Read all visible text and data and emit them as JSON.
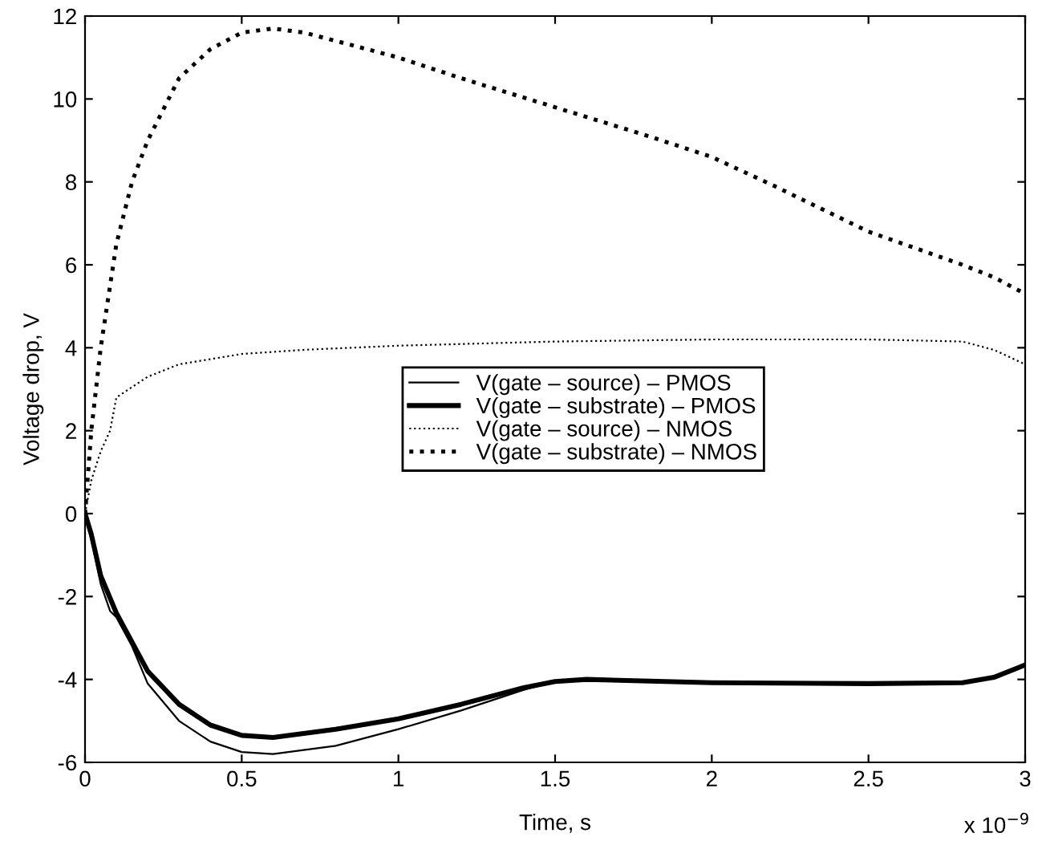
{
  "chart_data": {
    "type": "line",
    "xlabel": "Time, s",
    "ylabel": "Voltage drop, V",
    "xlim": [
      0,
      3
    ],
    "xticks": [
      0,
      0.5,
      1,
      1.5,
      2,
      2.5,
      3
    ],
    "ylim": [
      -6,
      12
    ],
    "yticks": [
      -6,
      -4,
      -2,
      0,
      2,
      4,
      6,
      8,
      10,
      12
    ],
    "annotations": [
      "x 10$^{−9}$"
    ],
    "grid": false,
    "legend": "center",
    "series": [
      {
        "name": "V(gate – source) – PMOS",
        "color": "#000000",
        "line_style": "solid",
        "x": [
          0,
          0.02,
          0.05,
          0.08,
          0.1,
          0.15,
          0.2,
          0.3,
          0.4,
          0.5,
          0.6,
          0.8,
          1.0,
          1.2,
          1.4,
          1.5,
          1.6,
          2.0,
          2.5,
          2.8,
          2.9,
          3.0
        ],
        "values": [
          0,
          -0.6,
          -1.7,
          -2.35,
          -2.5,
          -3.2,
          -4.1,
          -5.0,
          -5.5,
          -5.75,
          -5.8,
          -5.6,
          -5.2,
          -4.75,
          -4.25,
          -4.05,
          -4.0,
          -4.08,
          -4.1,
          -4.08,
          -3.95,
          -3.65
        ]
      },
      {
        "name": "V(gate – substrate) – PMOS",
        "color": "#000000",
        "line_style": "solid",
        "x": [
          0,
          0.02,
          0.05,
          0.1,
          0.2,
          0.3,
          0.4,
          0.5,
          0.6,
          0.8,
          1.0,
          1.2,
          1.4,
          1.5,
          1.6,
          2.0,
          2.5,
          2.8,
          2.9,
          3.0
        ],
        "values": [
          0,
          -0.5,
          -1.5,
          -2.4,
          -3.8,
          -4.6,
          -5.1,
          -5.35,
          -5.4,
          -5.2,
          -4.95,
          -4.6,
          -4.2,
          -4.05,
          -4.0,
          -4.08,
          -4.1,
          -4.08,
          -3.95,
          -3.65
        ]
      },
      {
        "name": "V(gate – source) – NMOS",
        "color": "#000000",
        "line_style": "dotted",
        "x": [
          0,
          0.02,
          0.05,
          0.08,
          0.1,
          0.2,
          0.3,
          0.5,
          0.7,
          1.0,
          1.5,
          2.0,
          2.5,
          2.8,
          2.9,
          3.0
        ],
        "values": [
          0,
          0.8,
          1.5,
          2.0,
          2.8,
          3.3,
          3.6,
          3.85,
          3.95,
          4.05,
          4.15,
          4.2,
          4.2,
          4.15,
          3.95,
          3.6
        ]
      },
      {
        "name": "V(gate – substrate) – NMOS",
        "color": "#000000",
        "line_style": "dotted",
        "x": [
          0,
          0.02,
          0.05,
          0.1,
          0.15,
          0.2,
          0.3,
          0.4,
          0.5,
          0.6,
          0.7,
          0.8,
          1.0,
          1.2,
          1.5,
          1.8,
          2.0,
          2.2,
          2.5,
          2.8,
          2.9,
          3.0
        ],
        "values": [
          0,
          2.0,
          4.0,
          6.5,
          8.0,
          9.0,
          10.5,
          11.2,
          11.6,
          11.7,
          11.6,
          11.4,
          11.0,
          10.5,
          9.8,
          9.1,
          8.6,
          7.9,
          6.8,
          6.0,
          5.7,
          5.3
        ]
      }
    ]
  }
}
